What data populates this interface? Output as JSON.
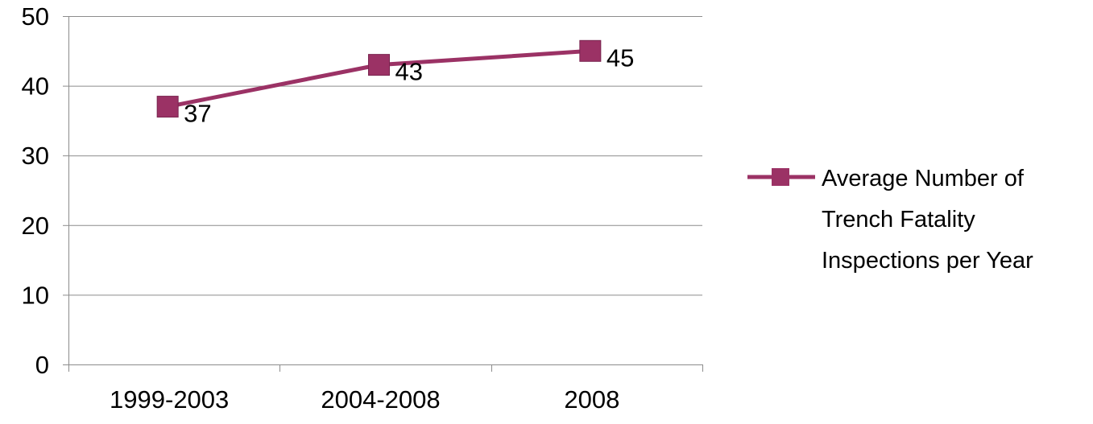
{
  "chart_data": {
    "type": "line",
    "categories": [
      "1999-2003",
      "2004-2008",
      "2008"
    ],
    "series": [
      {
        "name": "Average Number of Trench Fatality Inspections per Year",
        "values": [
          37,
          43,
          45
        ],
        "color": "#9b3265",
        "marker": "square"
      }
    ],
    "data_labels": [
      "37",
      "43",
      "45"
    ],
    "ylim": [
      0,
      50
    ],
    "yticks": [
      0,
      10,
      20,
      30,
      40,
      50
    ],
    "grid": true,
    "legend_position": "right",
    "legend_lines": [
      "Average Number of",
      "Trench Fatality",
      "Inspections per Year"
    ],
    "gridline_color": "#8c8c8c",
    "axis_color": "#8c8c8c"
  }
}
